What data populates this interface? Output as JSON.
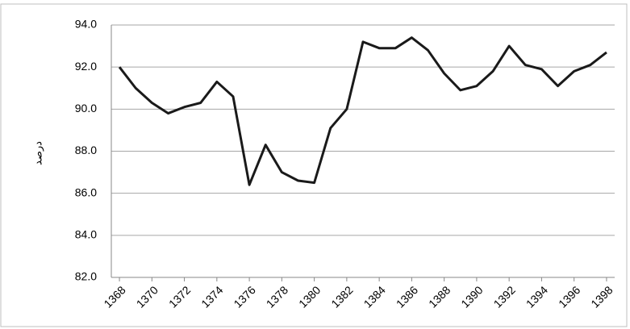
{
  "chart_data": {
    "type": "line",
    "y_label": "درصد",
    "x": [
      1368,
      1369,
      1370,
      1371,
      1372,
      1373,
      1374,
      1375,
      1376,
      1377,
      1378,
      1379,
      1380,
      1381,
      1382,
      1383,
      1384,
      1385,
      1386,
      1387,
      1388,
      1389,
      1390,
      1391,
      1392,
      1393,
      1394,
      1395,
      1396,
      1397,
      1398
    ],
    "values": [
      92.0,
      91.0,
      90.3,
      89.8,
      90.1,
      90.3,
      91.3,
      90.6,
      86.4,
      88.3,
      87.0,
      86.6,
      86.5,
      89.1,
      90.0,
      93.2,
      92.9,
      92.9,
      93.4,
      92.8,
      91.7,
      90.9,
      91.1,
      91.8,
      93.0,
      92.1,
      91.9,
      91.1,
      91.8,
      92.1,
      92.7
    ],
    "color": "#1a1a1a",
    "xlim": [
      1367.5,
      1398.5
    ],
    "xticks": [
      1368,
      1370,
      1372,
      1374,
      1376,
      1378,
      1380,
      1382,
      1384,
      1386,
      1388,
      1390,
      1392,
      1394,
      1396,
      1398
    ],
    "ylim": [
      82,
      94
    ],
    "yticks": [
      {
        "value": 82,
        "label": "82.0"
      },
      {
        "value": 84,
        "label": "84.0"
      },
      {
        "value": 86,
        "label": "86.0"
      },
      {
        "value": 88,
        "label": "88.0"
      },
      {
        "value": 90,
        "label": "90.0"
      },
      {
        "value": 92,
        "label": "92.0"
      },
      {
        "value": 94,
        "label": "94.0"
      }
    ],
    "grid": true
  }
}
